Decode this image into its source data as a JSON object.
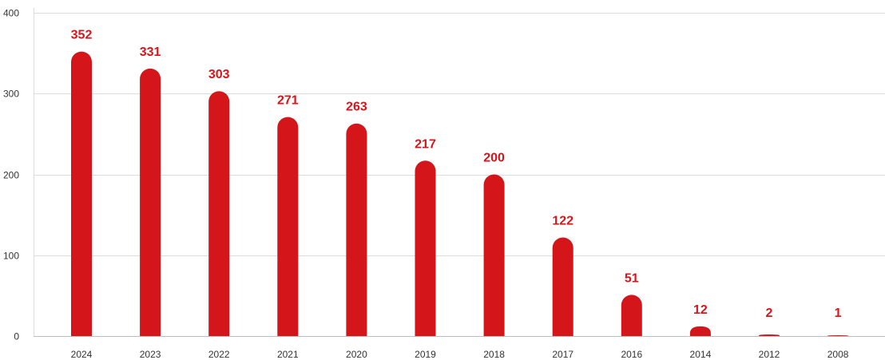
{
  "chart_data": {
    "type": "bar",
    "title": "",
    "xlabel": "",
    "ylabel": "",
    "categories": [
      "2024",
      "2023",
      "2022",
      "2021",
      "2020",
      "2019",
      "2018",
      "2017",
      "2016",
      "2014",
      "2012",
      "2008"
    ],
    "values": [
      352,
      331,
      303,
      271,
      263,
      217,
      200,
      122,
      51,
      12,
      2,
      1
    ],
    "data_labels": [
      "352",
      "331",
      "303",
      "271",
      "263",
      "217",
      "200",
      "122",
      "51",
      "12",
      "2",
      "1"
    ],
    "ylim": [
      0,
      400
    ],
    "yticks": [
      0,
      100,
      200,
      300,
      400
    ],
    "ytick_labels": [
      "0",
      "100",
      "200",
      "300",
      "400"
    ],
    "grid": true,
    "legend": "none",
    "colors": {
      "bar": "#d41519",
      "label": "#d41519",
      "grid": "#dcdcdc",
      "text": "#333333"
    }
  }
}
